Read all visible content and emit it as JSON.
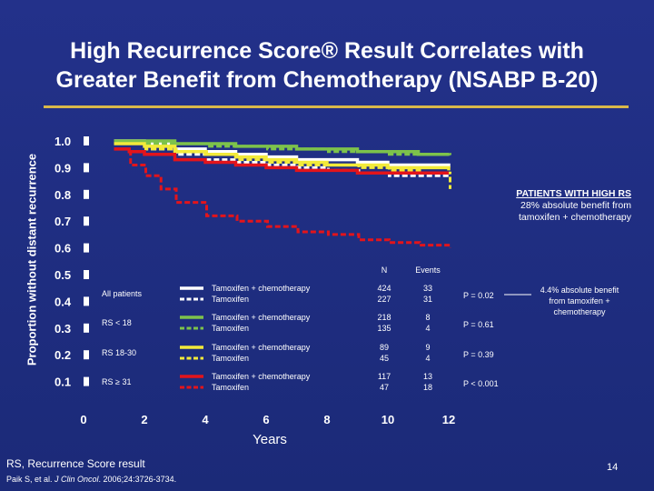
{
  "title": {
    "line1": "High Recurrence Score® Result Correlates with",
    "line2": "Greater Benefit from Chemotherapy (NSABP B-20)"
  },
  "chart_data": {
    "type": "line",
    "xlabel": "Years",
    "ylabel": "Proportion without distant recurrence",
    "xlim": [
      0,
      12
    ],
    "ylim": [
      0.0,
      1.0
    ],
    "x_ticks": [
      "0",
      "2",
      "4",
      "6",
      "8",
      "10",
      "12"
    ],
    "y_ticks": [
      "1.0",
      "0.9",
      "0.8",
      "0.7",
      "0.6",
      "0.5",
      "0.4",
      "0.3",
      "0.2",
      "0.1"
    ],
    "series": [
      {
        "name": "All patients — Tamoxifen + chemotherapy",
        "color": "#ffffff",
        "style": "solid",
        "x": [
          1,
          2,
          3,
          4,
          5,
          6,
          7,
          8,
          9,
          10,
          11,
          12
        ],
        "y": [
          1.0,
          0.99,
          0.97,
          0.96,
          0.95,
          0.94,
          0.93,
          0.93,
          0.92,
          0.91,
          0.91,
          0.9
        ]
      },
      {
        "name": "All patients — Tamoxifen",
        "color": "#ffffff",
        "style": "dashed",
        "x": [
          1,
          2,
          3,
          4,
          5,
          6,
          7,
          8,
          9,
          10,
          11,
          12
        ],
        "y": [
          0.99,
          0.97,
          0.95,
          0.93,
          0.92,
          0.91,
          0.9,
          0.89,
          0.88,
          0.87,
          0.87,
          0.86
        ]
      },
      {
        "name": "RS < 18 — Tamoxifen + chemotherapy",
        "color": "#7dc24b",
        "style": "solid",
        "x": [
          1,
          2,
          3,
          4,
          5,
          6,
          7,
          8,
          9,
          10,
          11,
          12
        ],
        "y": [
          1.0,
          1.0,
          0.99,
          0.99,
          0.98,
          0.98,
          0.97,
          0.97,
          0.96,
          0.96,
          0.95,
          0.95
        ]
      },
      {
        "name": "RS < 18 — Tamoxifen",
        "color": "#7dc24b",
        "style": "dashed",
        "x": [
          1,
          2,
          3,
          4,
          5,
          6,
          7,
          8,
          9,
          10,
          11,
          12
        ],
        "y": [
          1.0,
          0.99,
          0.99,
          0.98,
          0.98,
          0.97,
          0.97,
          0.96,
          0.96,
          0.95,
          0.95,
          0.94
        ]
      },
      {
        "name": "RS 18-30 — Tamoxifen + chemotherapy",
        "color": "#f2ea3a",
        "style": "solid",
        "x": [
          1,
          2,
          3,
          4,
          5,
          6,
          7,
          8,
          9,
          10,
          11,
          12
        ],
        "y": [
          0.99,
          0.98,
          0.96,
          0.95,
          0.94,
          0.93,
          0.92,
          0.91,
          0.91,
          0.9,
          0.9,
          0.89
        ]
      },
      {
        "name": "RS 18-30 — Tamoxifen",
        "color": "#f2ea3a",
        "style": "dashed",
        "x": [
          1,
          2,
          3,
          4,
          5,
          6,
          7,
          8,
          9,
          10,
          11,
          12
        ],
        "y": [
          0.99,
          0.97,
          0.96,
          0.95,
          0.93,
          0.92,
          0.91,
          0.91,
          0.9,
          0.89,
          0.88,
          0.82
        ]
      },
      {
        "name": "RS ≥ 31 — Tamoxifen + chemotherapy",
        "color": "#e3141b",
        "style": "solid",
        "x": [
          1,
          1.5,
          2,
          3,
          4,
          5,
          6,
          7,
          8,
          9,
          10,
          11,
          12
        ],
        "y": [
          0.97,
          0.96,
          0.95,
          0.93,
          0.92,
          0.91,
          0.9,
          0.89,
          0.89,
          0.88,
          0.88,
          0.88,
          0.88
        ]
      },
      {
        "name": "RS ≥ 31 — Tamoxifen",
        "color": "#e3141b",
        "style": "dashed",
        "x": [
          1,
          1.5,
          2,
          2.5,
          3,
          4,
          5,
          6,
          7,
          8,
          9,
          10,
          11,
          12
        ],
        "y": [
          0.97,
          0.91,
          0.87,
          0.82,
          0.77,
          0.72,
          0.7,
          0.68,
          0.66,
          0.65,
          0.63,
          0.62,
          0.61,
          0.6
        ]
      }
    ],
    "table": {
      "col_n": "N",
      "col_events": "Events",
      "rows": [
        {
          "group": "All patients",
          "color": "#ffffff",
          "arms": [
            "Tamoxifen + chemotherapy",
            "Tamoxifen"
          ],
          "n": [
            "424",
            "227"
          ],
          "events": [
            "33",
            "31"
          ],
          "p": "P = 0.02"
        },
        {
          "group": "RS < 18",
          "color": "#7dc24b",
          "arms": [
            "Tamoxifen + chemotherapy",
            "Tamoxifen"
          ],
          "n": [
            "218",
            "135"
          ],
          "events": [
            "8",
            "4"
          ],
          "p": "P = 0.61"
        },
        {
          "group": "RS 18-30",
          "color": "#f2ea3a",
          "arms": [
            "Tamoxifen + chemotherapy",
            "Tamoxifen"
          ],
          "n": [
            "89",
            "45"
          ],
          "events": [
            "9",
            "4"
          ],
          "p": "P = 0.39"
        },
        {
          "group": "RS ≥ 31",
          "color": "#e3141b",
          "arms": [
            "Tamoxifen + chemotherapy",
            "Tamoxifen"
          ],
          "n": [
            "117",
            "47"
          ],
          "events": [
            "13",
            "18"
          ],
          "p": "P < 0.001"
        }
      ]
    },
    "annotations": {
      "hr_title": "PATIENTS WITH HIGH RS",
      "hr_line1": "28% absolute benefit from",
      "hr_line2": "tamoxifen + chemotherapy",
      "all_line1": "4.4% absolute benefit",
      "all_line2": "from tamoxifen +",
      "all_line3": "chemotherapy"
    }
  },
  "footer": {
    "note": "RS, Recurrence Score result",
    "citation_prefix": "Paik S, et al. ",
    "citation_journal": "J Clin Oncol",
    "citation_suffix": ". 2006;24:3726-3734.",
    "page_number": "14"
  },
  "colors": {
    "background": "#1f2d80",
    "rule": "#d9b84a",
    "callout_box": "#d9b84a"
  }
}
